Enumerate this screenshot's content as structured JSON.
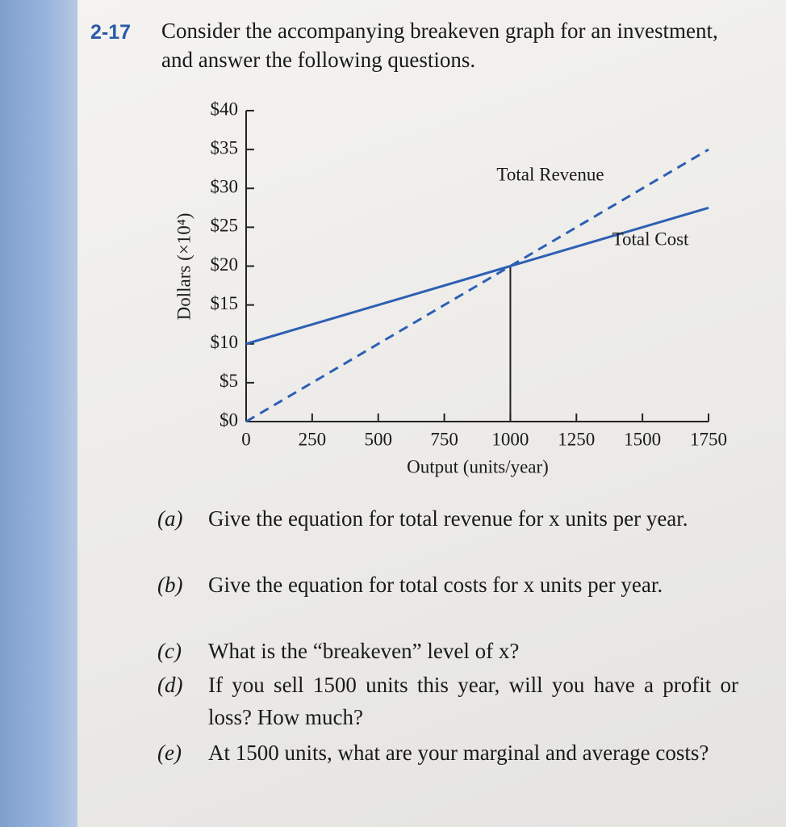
{
  "problem": {
    "number": "2-17",
    "text": "Consider the accompanying breakeven graph for an investment, and answer the following questions."
  },
  "chart_data": {
    "type": "line",
    "xlabel": "Output (units/year)",
    "ylabel": "Dollars (×10⁴)",
    "x": [
      0,
      1000,
      1750
    ],
    "series": [
      {
        "name": "Total Revenue",
        "color": "#2d5fb4",
        "style": "dashed",
        "values": [
          0,
          20,
          35
        ]
      },
      {
        "name": "Total Cost",
        "color": "#2d5fb4",
        "style": "solid",
        "values": [
          10,
          20,
          27.5
        ]
      }
    ],
    "xlim": [
      0,
      1750
    ],
    "xticks": [
      0,
      250,
      500,
      750,
      1000,
      1250,
      1500,
      1750
    ],
    "ylim": [
      0,
      40
    ],
    "yticks": [
      {
        "value": 0,
        "label": "$0"
      },
      {
        "value": 5,
        "label": "$5"
      },
      {
        "value": 10,
        "label": "$10"
      },
      {
        "value": 15,
        "label": "$15"
      },
      {
        "value": 20,
        "label": "$20"
      },
      {
        "value": 25,
        "label": "$25"
      },
      {
        "value": 30,
        "label": "$30"
      },
      {
        "value": 35,
        "label": "$35"
      },
      {
        "value": 40,
        "label": "$40"
      }
    ]
  },
  "questions": [
    {
      "label": "(a)",
      "text": "Give the equation for total revenue for x units per year."
    },
    {
      "label": "(b)",
      "text": "Give the equation for total costs for x units per year."
    },
    {
      "label": "(c)",
      "text": "What is the “breakeven” level of x?"
    },
    {
      "label": "(d)",
      "text": "If you sell 1500 units this year, will you have a profit or loss? How much?"
    },
    {
      "label": "(e)",
      "text": "At 1500 units, what are your marginal and average costs?"
    }
  ]
}
